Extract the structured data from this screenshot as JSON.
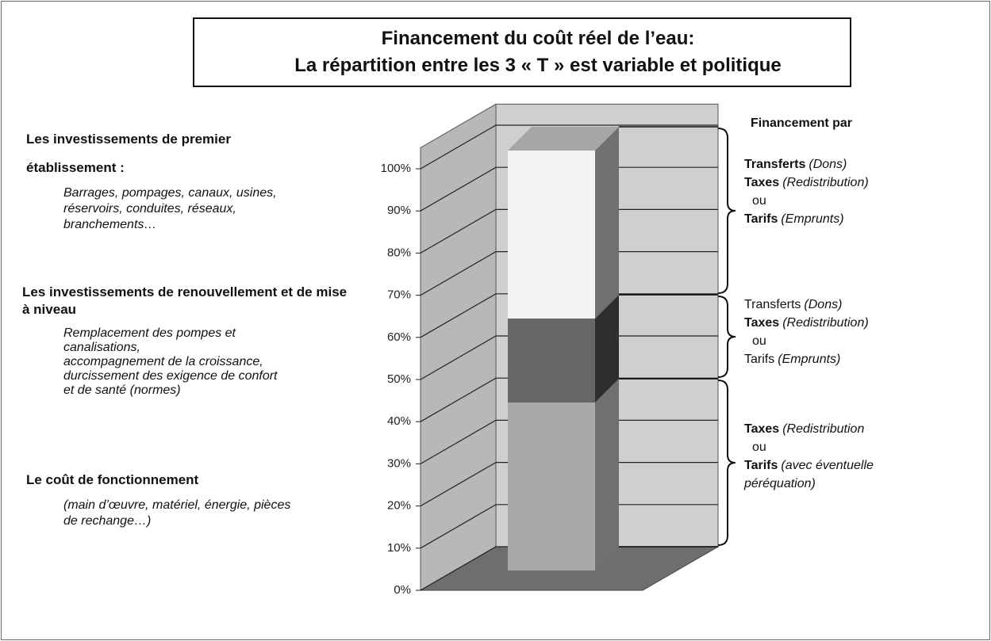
{
  "chart_data": {
    "type": "bar3d",
    "title": [
      "Financement du coût réel de l’eau:",
      "La répartition entre les 3 « T » est variable et politique"
    ],
    "categories": [
      null
    ],
    "stacked": true,
    "ylim": [
      0,
      100
    ],
    "yticks": [
      {
        "value": 0,
        "label": "0%"
      },
      {
        "value": 10,
        "label": "10%"
      },
      {
        "value": 20,
        "label": "20%"
      },
      {
        "value": 30,
        "label": "30%"
      },
      {
        "value": 40,
        "label": "40%"
      },
      {
        "value": 50,
        "label": "50%"
      },
      {
        "value": 60,
        "label": "60%"
      },
      {
        "value": 70,
        "label": "70%"
      },
      {
        "value": 80,
        "label": "80%"
      },
      {
        "value": 90,
        "label": "90%"
      },
      {
        "value": 100,
        "label": "100%"
      }
    ],
    "grid": true,
    "series": [
      {
        "name": "Le coût de fonctionnement",
        "color": "#a9a9a9",
        "side_color": "#707070",
        "values": [
          40
        ],
        "description": [
          "(main d’œuvre, matériel, énergie, pièces",
          "de rechange…)"
        ]
      },
      {
        "name": "Les investissements de renouvellement et de mise à niveau",
        "color": "#666666",
        "side_color": "#2e2e2e",
        "values": [
          20
        ],
        "description": [
          "Remplacement des pompes et",
          "canalisations,",
          "accompagnement de la croissance,",
          "durcissement des exigence de confort",
          "et de santé (normes)"
        ]
      },
      {
        "name": "Les investissements de premier établissement :",
        "color": "#f2f2f2",
        "side_color": "#707070",
        "top_color": "#a6a6a6",
        "values": [
          40
        ],
        "description": [
          "Barrages, pompages, canaux, usines,",
          "réservoirs, conduites, réseaux,",
          "branchements…"
        ]
      }
    ],
    "financing": {
      "title": "Financement par",
      "groups": [
        [
          [
            "Transferts",
            "(Dons)"
          ],
          [
            "Taxes",
            "(Redistribution)"
          ],
          [
            "ou"
          ],
          [
            "Tarifs",
            "(Emprunts)"
          ]
        ],
        [
          [
            "Transferts",
            "(Dons)"
          ],
          [
            "Taxes",
            "(Redistribution)"
          ],
          [
            "ou"
          ],
          [
            "Tarifs",
            "(Emprunts)"
          ]
        ],
        [
          [
            "Taxes",
            "(Redistribution"
          ],
          [
            "ou"
          ],
          [
            "Tarifs",
            "(avec éventuelle"
          ],
          [
            "péréquation)"
          ]
        ]
      ]
    }
  }
}
